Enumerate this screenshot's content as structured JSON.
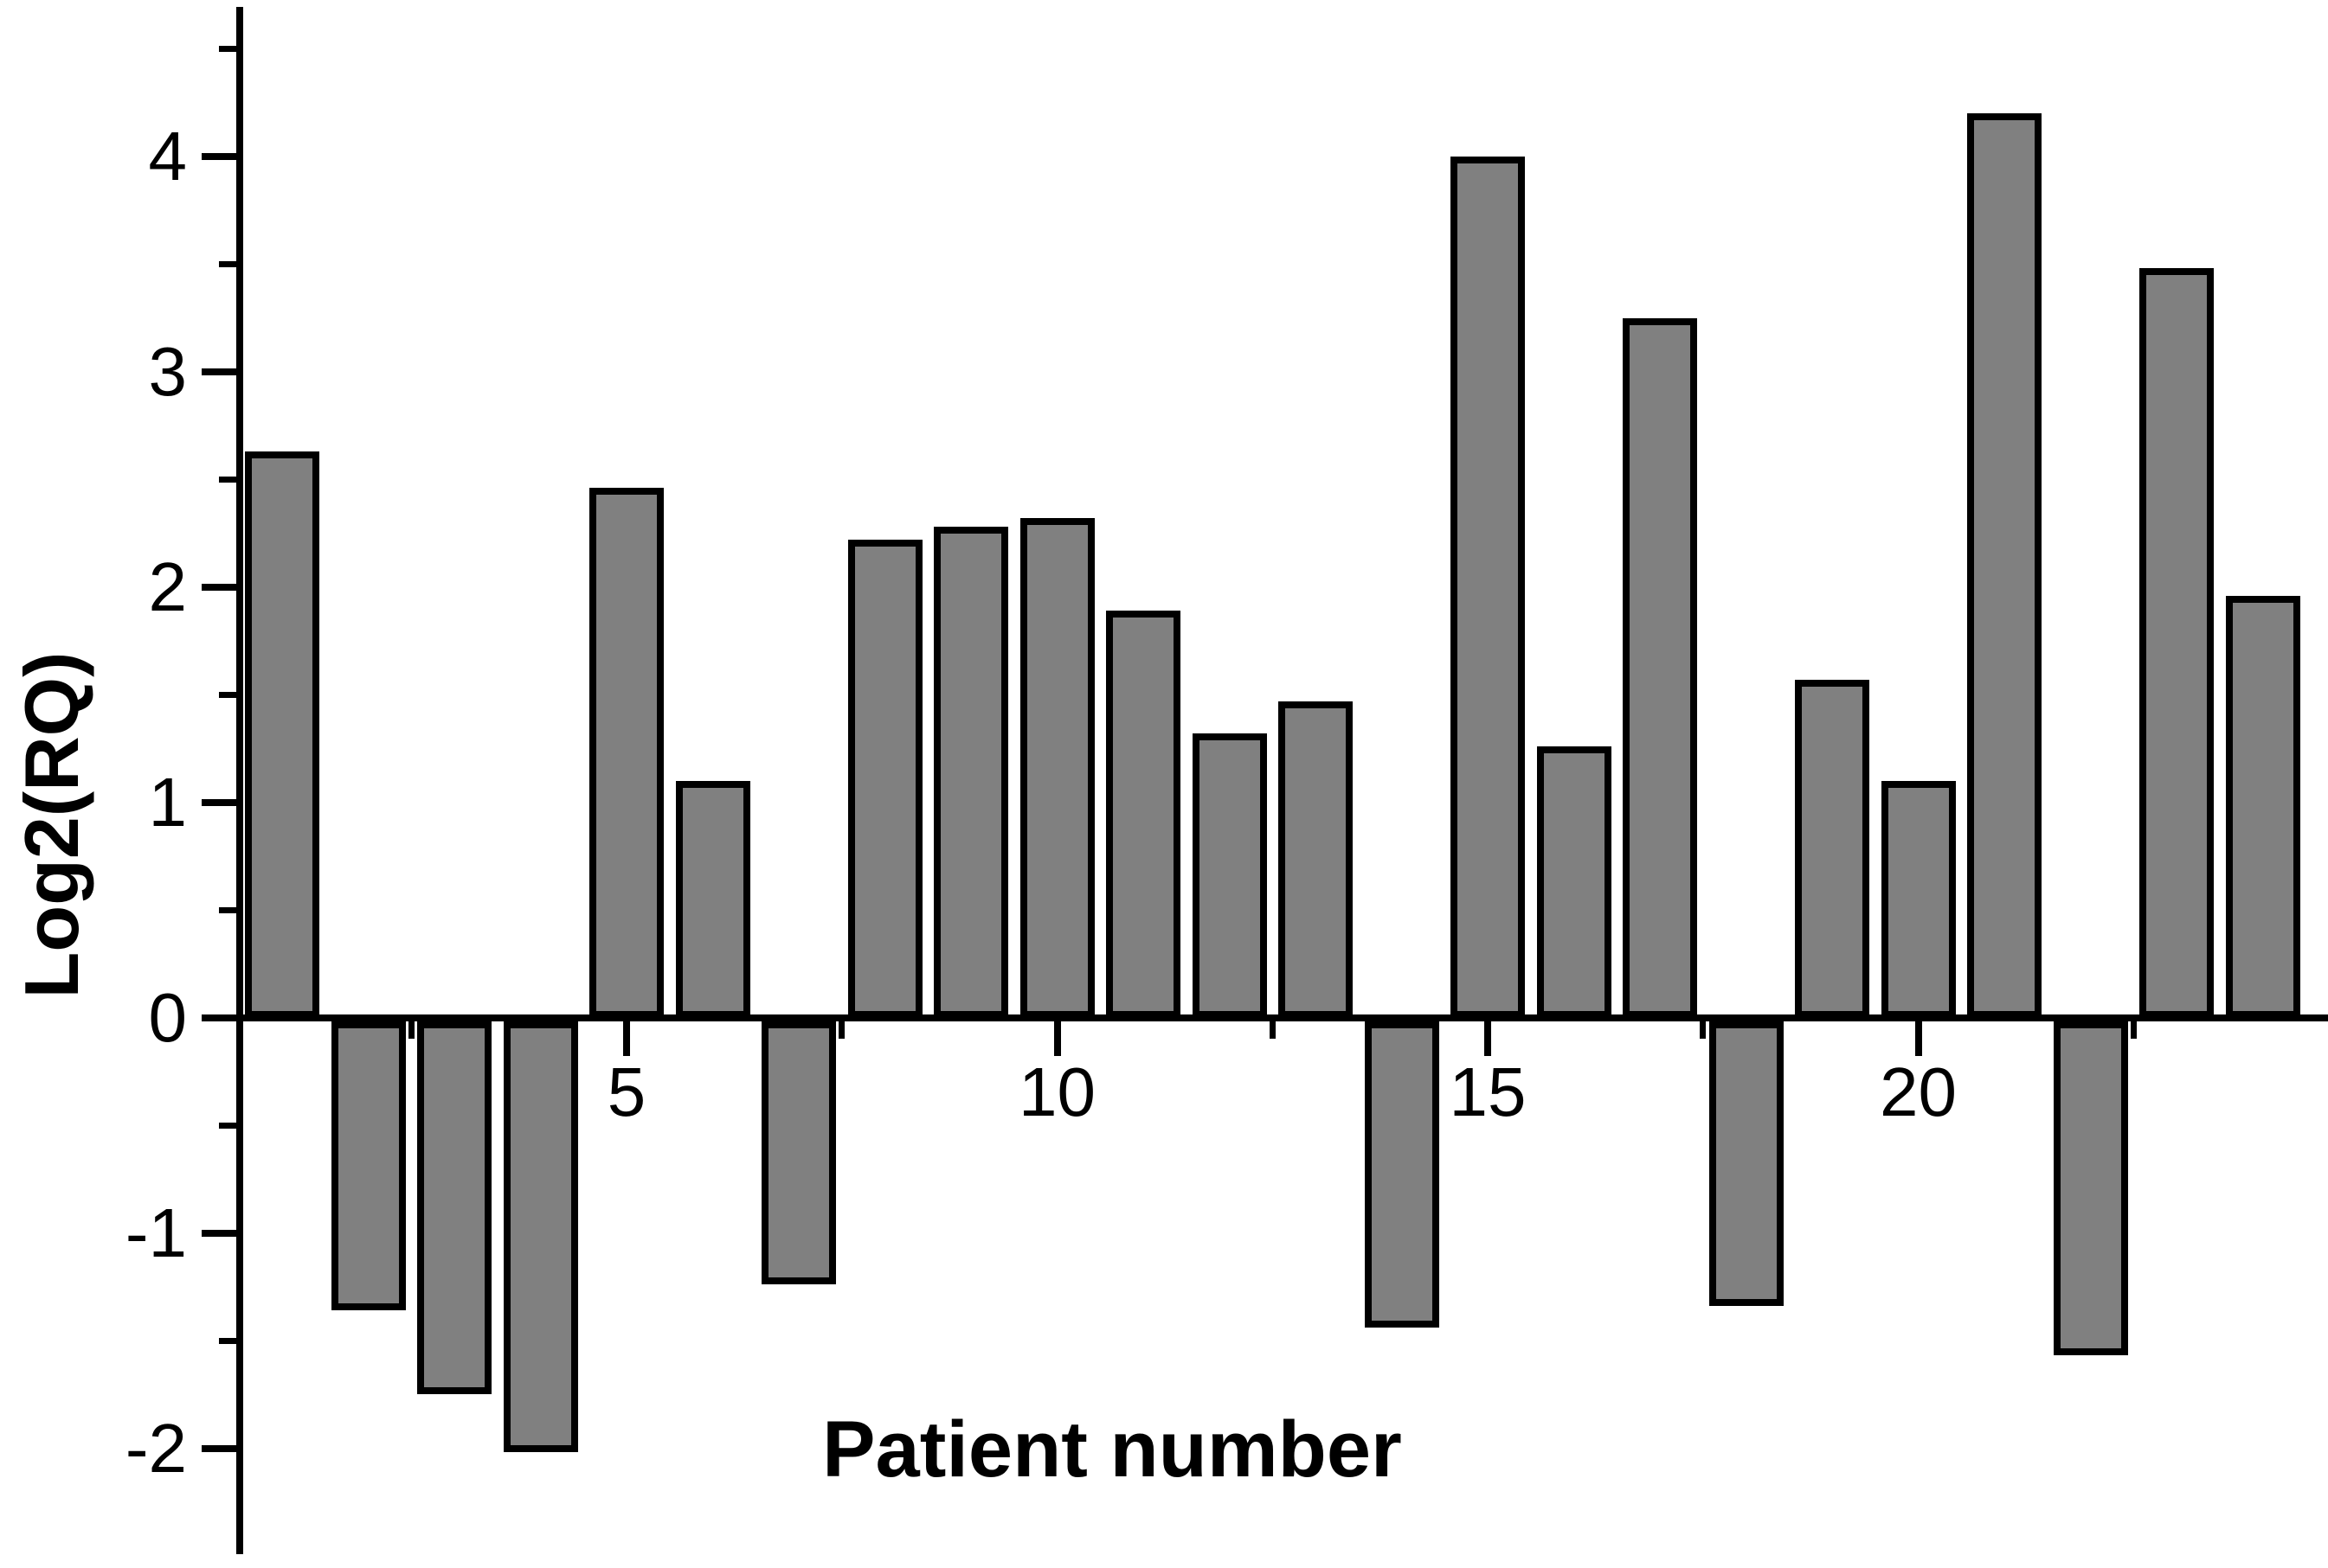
{
  "chart_data": {
    "type": "bar",
    "title": "",
    "xlabel": "Patient number",
    "ylabel": "Log2(RQ)",
    "categories": [
      1,
      2,
      3,
      4,
      5,
      6,
      7,
      8,
      9,
      10,
      11,
      12,
      13,
      14,
      15,
      16,
      17,
      18,
      19,
      20,
      21,
      22,
      23,
      24
    ],
    "values": [
      2.63,
      -1.34,
      -1.73,
      -2.0,
      2.46,
      1.1,
      -1.22,
      2.22,
      2.28,
      2.32,
      1.89,
      1.32,
      1.47,
      -1.42,
      4.0,
      1.26,
      3.25,
      -1.32,
      1.57,
      1.1,
      4.2,
      -1.55,
      3.48,
      1.96
    ],
    "ylim": [
      -2.5,
      4.7
    ],
    "xlim": [
      0.5,
      24.75
    ],
    "y_major_ticks": [
      4,
      3,
      2,
      1,
      0,
      -1,
      -2
    ],
    "y_major_tick_labels": [
      "4",
      "3",
      "2",
      "1",
      "0",
      "-1",
      "-2"
    ],
    "y_minor_ticks": [
      4.5,
      3.5,
      2.5,
      1.5,
      0.5,
      -0.5,
      -1.5
    ],
    "x_major_ticks": [
      5,
      10,
      15,
      20
    ],
    "x_major_tick_labels": [
      "5",
      "10",
      "15",
      "20"
    ],
    "x_minor_ticks": [
      2.5,
      7.5,
      12.5,
      17.5,
      22.5
    ],
    "bar_fill_color": "#808080",
    "bar_outline_color": "#000000",
    "axis_color": "#000000",
    "background_color": "#ffffff",
    "grid": false,
    "legend_position": "none",
    "baseline": 0
  }
}
